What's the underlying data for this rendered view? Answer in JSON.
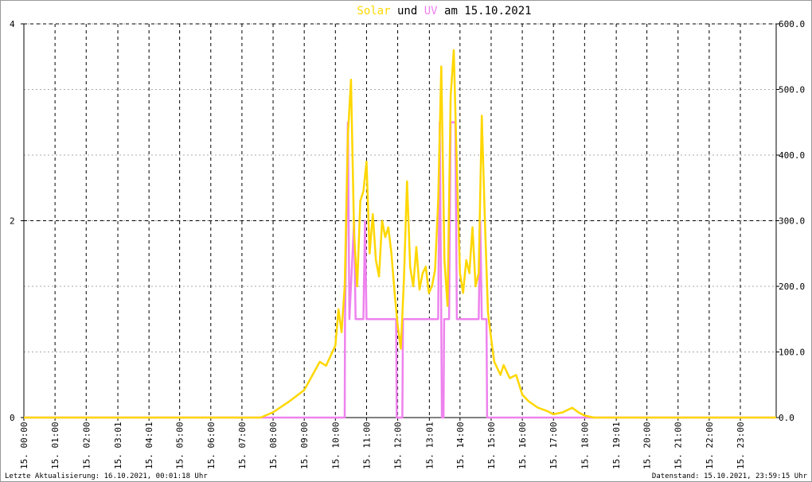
{
  "chart_data": {
    "type": "line",
    "title_words": [
      "und",
      "am 15.10.2021"
    ],
    "footer_left": "Letzte Aktualisierung: 16.10.2021, 00:01:18 Uhr",
    "footer_right": "Datenstand: 15.10.2021, 23:59:15 Uhr",
    "grid": true,
    "xlim": [
      0,
      24.15
    ],
    "xticks": [
      {
        "value": 0,
        "label": "15. 00:00"
      },
      {
        "value": 1,
        "label": "15. 01:00"
      },
      {
        "value": 2,
        "label": "15. 02:00"
      },
      {
        "value": 3.0167,
        "label": "15. 03:01"
      },
      {
        "value": 4.0167,
        "label": "15. 04:01"
      },
      {
        "value": 5,
        "label": "15. 05:00"
      },
      {
        "value": 6,
        "label": "15. 06:00"
      },
      {
        "value": 7,
        "label": "15. 07:00"
      },
      {
        "value": 8,
        "label": "15. 08:00"
      },
      {
        "value": 9,
        "label": "15. 09:00"
      },
      {
        "value": 10,
        "label": "15. 10:00"
      },
      {
        "value": 11,
        "label": "15. 11:00"
      },
      {
        "value": 12,
        "label": "15. 12:00"
      },
      {
        "value": 13.0167,
        "label": "15. 13:01"
      },
      {
        "value": 14,
        "label": "15. 14:00"
      },
      {
        "value": 15,
        "label": "15. 15:00"
      },
      {
        "value": 16,
        "label": "15. 16:00"
      },
      {
        "value": 17,
        "label": "15. 17:00"
      },
      {
        "value": 18,
        "label": "15. 18:00"
      },
      {
        "value": 19.0167,
        "label": "15. 19:01"
      },
      {
        "value": 20,
        "label": "15. 20:00"
      },
      {
        "value": 21,
        "label": "15. 21:00"
      },
      {
        "value": 22,
        "label": "15. 22:00"
      },
      {
        "value": 23,
        "label": "15. 23:00"
      }
    ],
    "ylim": [
      0,
      4
    ],
    "yticks": [
      0,
      2,
      4
    ],
    "y2lim": [
      0,
      600
    ],
    "y2ticks": [
      {
        "value": 0,
        "label": "0.0"
      },
      {
        "value": 100,
        "label": "100.0"
      },
      {
        "value": 200,
        "label": "200.0"
      },
      {
        "value": 300,
        "label": "300.0"
      },
      {
        "value": 400,
        "label": "400.0"
      },
      {
        "value": 500,
        "label": "500.0"
      },
      {
        "value": 600,
        "label": "600.0"
      }
    ],
    "series": [
      {
        "name": "UV",
        "color": "#ee82ee",
        "axis": "y",
        "x": [
          0,
          10.3,
          10.31,
          10.4,
          10.45,
          10.6,
          10.65,
          10.9,
          10.95,
          11.0,
          11.95,
          11.97,
          12.15,
          12.17,
          13.3,
          13.35,
          13.4,
          13.42,
          13.47,
          13.49,
          13.65,
          13.7,
          13.85,
          13.9,
          14.6,
          14.65,
          14.7,
          14.85,
          14.87,
          24.15
        ],
        "values": [
          0,
          0,
          1,
          3,
          1,
          2,
          1,
          1,
          2,
          1,
          1,
          0,
          0,
          1,
          1,
          3,
          1,
          0,
          0,
          1,
          1,
          3,
          3,
          1,
          1,
          2,
          1,
          1,
          0,
          0
        ]
      },
      {
        "name": "Solar",
        "color": "#ffd700",
        "axis": "y2",
        "x": [
          0,
          7.6,
          8.0,
          8.5,
          9.0,
          9.5,
          9.7,
          10.0,
          10.1,
          10.2,
          10.3,
          10.4,
          10.5,
          10.6,
          10.7,
          10.8,
          10.9,
          11.0,
          11.1,
          11.2,
          11.3,
          11.4,
          11.5,
          11.6,
          11.7,
          11.8,
          11.9,
          12.0,
          12.1,
          12.2,
          12.3,
          12.4,
          12.5,
          12.6,
          12.7,
          12.8,
          12.9,
          13.0,
          13.1,
          13.2,
          13.3,
          13.4,
          13.5,
          13.6,
          13.7,
          13.8,
          13.9,
          14.0,
          14.1,
          14.2,
          14.3,
          14.4,
          14.5,
          14.6,
          14.7,
          14.8,
          14.9,
          15.0,
          15.1,
          15.2,
          15.3,
          15.4,
          15.5,
          15.6,
          15.8,
          16.0,
          16.2,
          16.5,
          16.8,
          17.0,
          17.3,
          17.6,
          17.8,
          18.0,
          18.3,
          24.15
        ],
        "values": [
          0,
          0,
          8,
          24,
          42,
          85,
          79,
          110,
          165,
          130,
          200,
          430,
          515,
          280,
          200,
          330,
          345,
          390,
          250,
          310,
          240,
          215,
          300,
          275,
          290,
          250,
          190,
          140,
          105,
          210,
          360,
          230,
          200,
          260,
          195,
          220,
          230,
          190,
          200,
          225,
          330,
          535,
          240,
          170,
          490,
          560,
          380,
          220,
          190,
          240,
          220,
          290,
          200,
          220,
          460,
          300,
          160,
          120,
          85,
          75,
          65,
          80,
          70,
          60,
          65,
          35,
          25,
          15,
          10,
          5,
          8,
          15,
          8,
          3,
          0,
          0
        ]
      }
    ]
  }
}
